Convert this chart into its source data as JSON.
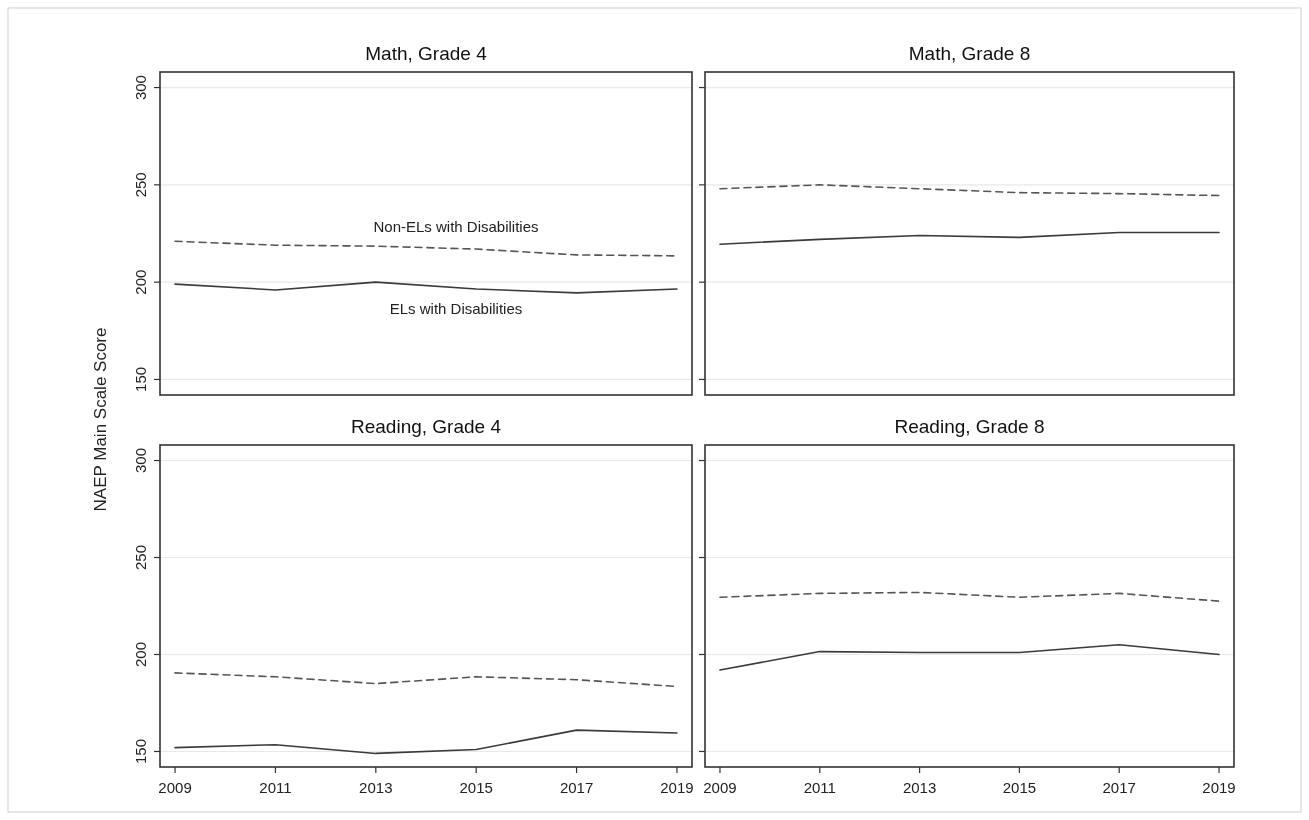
{
  "chart_data": [
    {
      "type": "line",
      "title": "Math, Grade 4",
      "ylabel": "NAEP Main Scale Score",
      "x": [
        2009,
        2011,
        2013,
        2015,
        2017,
        2019
      ],
      "xlim": [
        2008.7,
        2019.3
      ],
      "ylim": [
        142,
        308
      ],
      "yticks": [
        150,
        200,
        250,
        300
      ],
      "grid": "y",
      "tick_labels": "y",
      "series": [
        {
          "name": "Non-ELs with Disabilities",
          "color": "#555555",
          "line_style": "dashed",
          "values": [
            221,
            219,
            218.5,
            217,
            214,
            213.5
          ]
        },
        {
          "name": "ELs with Disabilities",
          "color": "#3a3a3a",
          "line_style": "solid",
          "values": [
            199,
            196,
            200,
            196.5,
            194.5,
            196.5
          ]
        }
      ]
    },
    {
      "type": "line",
      "title": "Math, Grade 8",
      "x": [
        2009,
        2011,
        2013,
        2015,
        2017,
        2019
      ],
      "xlim": [
        2008.7,
        2019.3
      ],
      "ylim": [
        142,
        308
      ],
      "yticks": [
        150,
        200,
        250,
        300
      ],
      "grid": "y",
      "tick_labels": false,
      "series": [
        {
          "color": "#555555",
          "line_style": "dashed",
          "values": [
            248,
            250,
            248,
            246,
            245.5,
            244.5
          ]
        },
        {
          "color": "#3a3a3a",
          "line_style": "solid",
          "values": [
            219.5,
            222,
            224,
            223,
            225.5,
            225.5
          ]
        }
      ]
    },
    {
      "type": "line",
      "title": "Reading, Grade 4",
      "x": [
        2009,
        2011,
        2013,
        2015,
        2017,
        2019
      ],
      "xlim": [
        2008.7,
        2019.3
      ],
      "xticks": [
        2009,
        2011,
        2013,
        2015,
        2017,
        2019
      ],
      "ylim": [
        142,
        308
      ],
      "yticks": [
        150,
        200,
        250,
        300
      ],
      "grid": "y",
      "series": [
        {
          "color": "#555555",
          "line_style": "dashed",
          "values": [
            190.5,
            188.5,
            185,
            188.5,
            187,
            183.5
          ]
        },
        {
          "color": "#3a3a3a",
          "line_style": "solid",
          "values": [
            152,
            153.5,
            149,
            151,
            161,
            159.5
          ]
        }
      ]
    },
    {
      "type": "line",
      "title": "Reading, Grade 8",
      "x": [
        2009,
        2011,
        2013,
        2015,
        2017,
        2019
      ],
      "xlim": [
        2008.7,
        2019.3
      ],
      "xticks": [
        2009,
        2011,
        2013,
        2015,
        2017,
        2019
      ],
      "ylim": [
        142,
        308
      ],
      "yticks": [
        150,
        200,
        250,
        300
      ],
      "grid": "y",
      "tick_labels": "x",
      "series": [
        {
          "color": "#555555",
          "line_style": "dashed",
          "values": [
            229.5,
            231.5,
            232,
            229.5,
            231.5,
            227.5
          ]
        },
        {
          "color": "#3a3a3a",
          "line_style": "solid",
          "values": [
            192,
            201.5,
            201,
            201,
            205,
            200
          ]
        }
      ]
    }
  ]
}
